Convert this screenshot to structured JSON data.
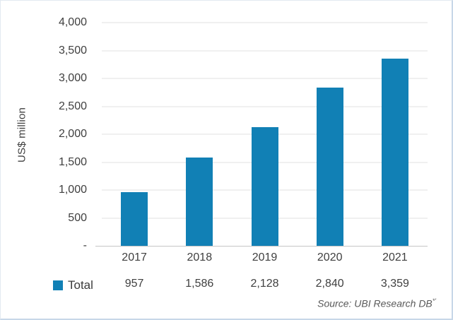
{
  "chart_data": {
    "type": "bar",
    "categories": [
      "2017",
      "2018",
      "2019",
      "2020",
      "2021"
    ],
    "series": [
      {
        "name": "Total",
        "values": [
          957,
          1586,
          2128,
          2840,
          3359
        ]
      }
    ],
    "value_labels": [
      "957",
      "1,586",
      "2,128",
      "2,840",
      "3,359"
    ],
    "title": "",
    "xlabel": "",
    "ylabel": "US$ million",
    "ylim": [
      0,
      4000
    ],
    "ytick_step": 500,
    "ytick_labels_top_to_bottom": [
      "4,000",
      "3,500",
      "3,000",
      "2,500",
      "2,000",
      "1,500",
      "1,000",
      "500",
      "-"
    ],
    "grid": "horizontal",
    "legend_position": "bottom-data-table",
    "bar_color": "#1180b5"
  },
  "legend": {
    "total_label": "Total"
  },
  "source": {
    "text": "Source: UBI Research DB",
    "superscript": "*'"
  },
  "colors": {
    "bar": "#1180b5",
    "gridline": "#f0f0f0",
    "axis_line": "#c6c6c6",
    "text": "#3f3f3f",
    "source_text": "#595959",
    "border": "#c7d7e8"
  }
}
